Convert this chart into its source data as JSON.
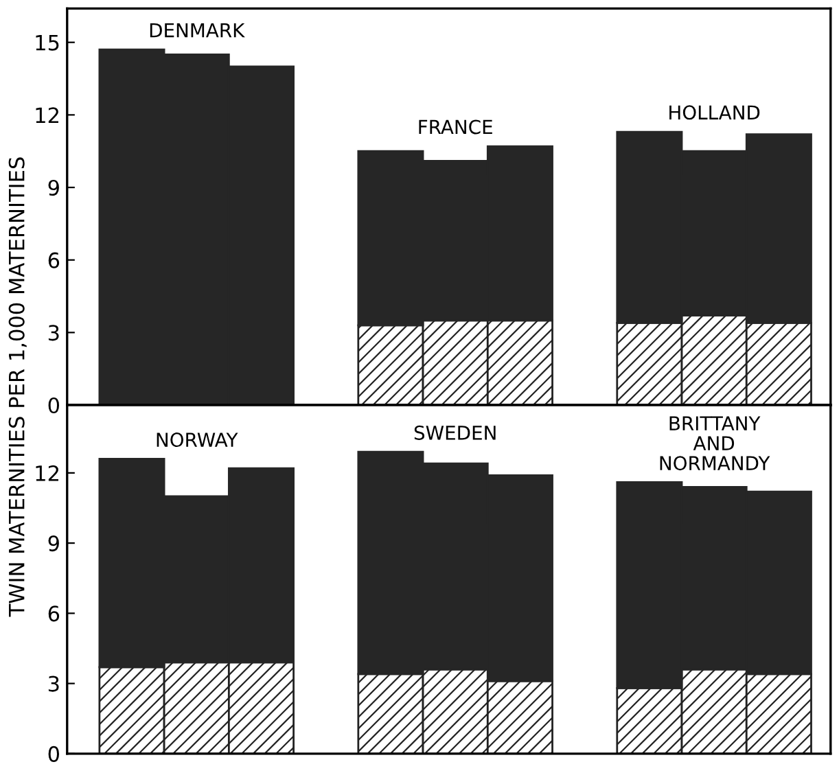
{
  "chart_data": [
    {
      "type": "bar",
      "stacked": true,
      "ylabel": "TWIN MATERNITIES PER 1,000 MATERNITIES",
      "categories": [
        null,
        null,
        null,
        null,
        null,
        null,
        null,
        null,
        null,
        null,
        null
      ],
      "series": [
        {
          "color": "#222222",
          "values": [
            null,
            null,
            null,
            null,
            3.3,
            3.5,
            3.5,
            null,
            3.4,
            3.7,
            3.4
          ]
        },
        {
          "color": "#262626",
          "values": [
            14.7,
            14.5,
            14.0,
            null,
            7.2,
            6.6,
            7.2,
            null,
            7.9,
            6.8,
            7.8
          ]
        }
      ],
      "annotations": [
        "DENMARK",
        "FRANCE",
        "HOLLAND"
      ],
      "ylim": [
        0,
        16.4
      ],
      "yticks": [
        0,
        3,
        6,
        9,
        12,
        15
      ],
      "tick_labels": "y",
      "grid": false,
      "legend": false
    },
    {
      "type": "bar",
      "stacked": true,
      "categories": [
        null,
        null,
        null,
        null,
        null,
        null,
        null,
        null,
        null,
        null,
        null
      ],
      "series": [
        {
          "color": "#222222",
          "values": [
            3.7,
            3.9,
            3.9,
            null,
            3.4,
            3.6,
            3.1,
            null,
            2.8,
            3.6,
            3.4
          ]
        },
        {
          "color": "#262626",
          "values": [
            8.9,
            7.1,
            8.3,
            null,
            9.5,
            8.8,
            8.8,
            null,
            8.8,
            7.8,
            7.8
          ]
        }
      ],
      "annotations": [
        "NORWAY",
        "SWEDEN",
        "BRITTANY\nAND\nNORMANDY"
      ],
      "ylim": [
        0,
        14.9
      ],
      "yticks": [
        0,
        3,
        6,
        9,
        12
      ],
      "tick_labels": "y",
      "grid": false,
      "legend": false
    }
  ]
}
